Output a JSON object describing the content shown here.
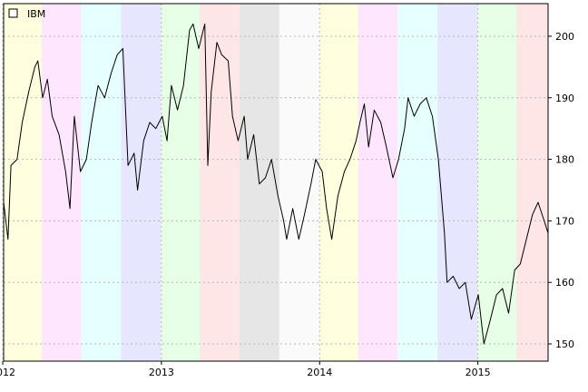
{
  "chart_data": {
    "type": "line",
    "title": "",
    "xlabel": "",
    "ylabel": "",
    "series": [
      {
        "name": "IBM",
        "color": "#000000",
        "points": [
          [
            "2012-01-03",
            173
          ],
          [
            "2012-01-13",
            167
          ],
          [
            "2012-01-20",
            179
          ],
          [
            "2012-02-03",
            180
          ],
          [
            "2012-02-15",
            186
          ],
          [
            "2012-03-01",
            191
          ],
          [
            "2012-03-15",
            195
          ],
          [
            "2012-03-22",
            196
          ],
          [
            "2012-04-02",
            190
          ],
          [
            "2012-04-13",
            193
          ],
          [
            "2012-04-24",
            187
          ],
          [
            "2012-05-10",
            184
          ],
          [
            "2012-05-25",
            178
          ],
          [
            "2012-06-04",
            172
          ],
          [
            "2012-06-14",
            187
          ],
          [
            "2012-06-28",
            178
          ],
          [
            "2012-07-12",
            180
          ],
          [
            "2012-07-24",
            186
          ],
          [
            "2012-08-08",
            192
          ],
          [
            "2012-08-23",
            190
          ],
          [
            "2012-09-07",
            194
          ],
          [
            "2012-09-21",
            197
          ],
          [
            "2012-10-04",
            198
          ],
          [
            "2012-10-16",
            179
          ],
          [
            "2012-10-30",
            181
          ],
          [
            "2012-11-07",
            175
          ],
          [
            "2012-11-21",
            183
          ],
          [
            "2012-12-05",
            186
          ],
          [
            "2012-12-19",
            185
          ],
          [
            "2013-01-03",
            187
          ],
          [
            "2013-01-14",
            183
          ],
          [
            "2013-01-24",
            192
          ],
          [
            "2013-02-07",
            188
          ],
          [
            "2013-02-21",
            192
          ],
          [
            "2013-03-07",
            201
          ],
          [
            "2013-03-15",
            202
          ],
          [
            "2013-03-28",
            198
          ],
          [
            "2013-04-11",
            202
          ],
          [
            "2013-04-18",
            179
          ],
          [
            "2013-04-26",
            191
          ],
          [
            "2013-05-09",
            199
          ],
          [
            "2013-05-20",
            197
          ],
          [
            "2013-06-04",
            196
          ],
          [
            "2013-06-14",
            187
          ],
          [
            "2013-06-27",
            183
          ],
          [
            "2013-07-11",
            187
          ],
          [
            "2013-07-19",
            180
          ],
          [
            "2013-08-02",
            184
          ],
          [
            "2013-08-15",
            176
          ],
          [
            "2013-08-29",
            177
          ],
          [
            "2013-09-12",
            180
          ],
          [
            "2013-09-27",
            174
          ],
          [
            "2013-10-10",
            170
          ],
          [
            "2013-10-17",
            167
          ],
          [
            "2013-10-31",
            172
          ],
          [
            "2013-11-14",
            167
          ],
          [
            "2013-11-27",
            171
          ],
          [
            "2013-12-12",
            176
          ],
          [
            "2013-12-23",
            180
          ],
          [
            "2014-01-07",
            178
          ],
          [
            "2014-01-17",
            172
          ],
          [
            "2014-01-29",
            167
          ],
          [
            "2014-02-12",
            174
          ],
          [
            "2014-02-27",
            178
          ],
          [
            "2014-03-12",
            180
          ],
          [
            "2014-03-26",
            183
          ],
          [
            "2014-04-04",
            186
          ],
          [
            "2014-04-14",
            189
          ],
          [
            "2014-04-24",
            182
          ],
          [
            "2014-05-07",
            188
          ],
          [
            "2014-05-22",
            186
          ],
          [
            "2014-06-04",
            182
          ],
          [
            "2014-06-19",
            177
          ],
          [
            "2014-07-02",
            180
          ],
          [
            "2014-07-16",
            185
          ],
          [
            "2014-07-24",
            190
          ],
          [
            "2014-08-07",
            187
          ],
          [
            "2014-08-21",
            189
          ],
          [
            "2014-09-04",
            190
          ],
          [
            "2014-09-18",
            187
          ],
          [
            "2014-10-02",
            180
          ],
          [
            "2014-10-16",
            168
          ],
          [
            "2014-10-22",
            160
          ],
          [
            "2014-11-05",
            161
          ],
          [
            "2014-11-19",
            159
          ],
          [
            "2014-12-03",
            160
          ],
          [
            "2014-12-17",
            154
          ],
          [
            "2015-01-02",
            158
          ],
          [
            "2015-01-15",
            150
          ],
          [
            "2015-01-30",
            154
          ],
          [
            "2015-02-13",
            158
          ],
          [
            "2015-02-27",
            159
          ],
          [
            "2015-03-13",
            155
          ],
          [
            "2015-03-27",
            162
          ],
          [
            "2015-04-09",
            163
          ],
          [
            "2015-04-23",
            167
          ],
          [
            "2015-05-07",
            171
          ],
          [
            "2015-05-20",
            173
          ],
          [
            "2015-06-03",
            170
          ],
          [
            "2015-06-12",
            168
          ]
        ]
      }
    ],
    "x_ticks": [
      {
        "label": "2012",
        "date": "2012-01-01"
      },
      {
        "label": "2013",
        "date": "2013-01-01"
      },
      {
        "label": "2014",
        "date": "2014-01-01"
      },
      {
        "label": "2015",
        "date": "2015-01-01"
      }
    ],
    "y_ticks": [
      150,
      160,
      170,
      180,
      190,
      200
    ],
    "xlim": [
      "2012-01-03",
      "2015-06-12"
    ],
    "ylim": [
      147.2,
      205.3
    ],
    "y_axis_side": "right",
    "grid": true,
    "legend_position": "top-left",
    "background_bands": [
      {
        "start": "2012-01-03",
        "end": "2012-03-31",
        "color": "#ffffe0"
      },
      {
        "start": "2012-03-31",
        "end": "2012-06-30",
        "color": "#ffe6ff"
      },
      {
        "start": "2012-06-30",
        "end": "2012-09-30",
        "color": "#e6ffff"
      },
      {
        "start": "2012-09-30",
        "end": "2012-12-31",
        "color": "#e6e6ff"
      },
      {
        "start": "2012-12-31",
        "end": "2013-03-31",
        "color": "#e6ffe6"
      },
      {
        "start": "2013-03-31",
        "end": "2013-06-30",
        "color": "#ffe6e6"
      },
      {
        "start": "2013-06-30",
        "end": "2013-09-30",
        "color": "#e6e6e6"
      },
      {
        "start": "2013-09-30",
        "end": "2013-12-31",
        "color": "#fafafa"
      },
      {
        "start": "2013-12-31",
        "end": "2014-03-31",
        "color": "#ffffe0"
      },
      {
        "start": "2014-03-31",
        "end": "2014-06-30",
        "color": "#ffe6ff"
      },
      {
        "start": "2014-06-30",
        "end": "2014-09-30",
        "color": "#e6ffff"
      },
      {
        "start": "2014-09-30",
        "end": "2014-12-31",
        "color": "#e6e6ff"
      },
      {
        "start": "2014-12-31",
        "end": "2015-03-31",
        "color": "#e6ffe6"
      },
      {
        "start": "2015-03-31",
        "end": "2015-06-12",
        "color": "#ffe6e6"
      }
    ]
  }
}
